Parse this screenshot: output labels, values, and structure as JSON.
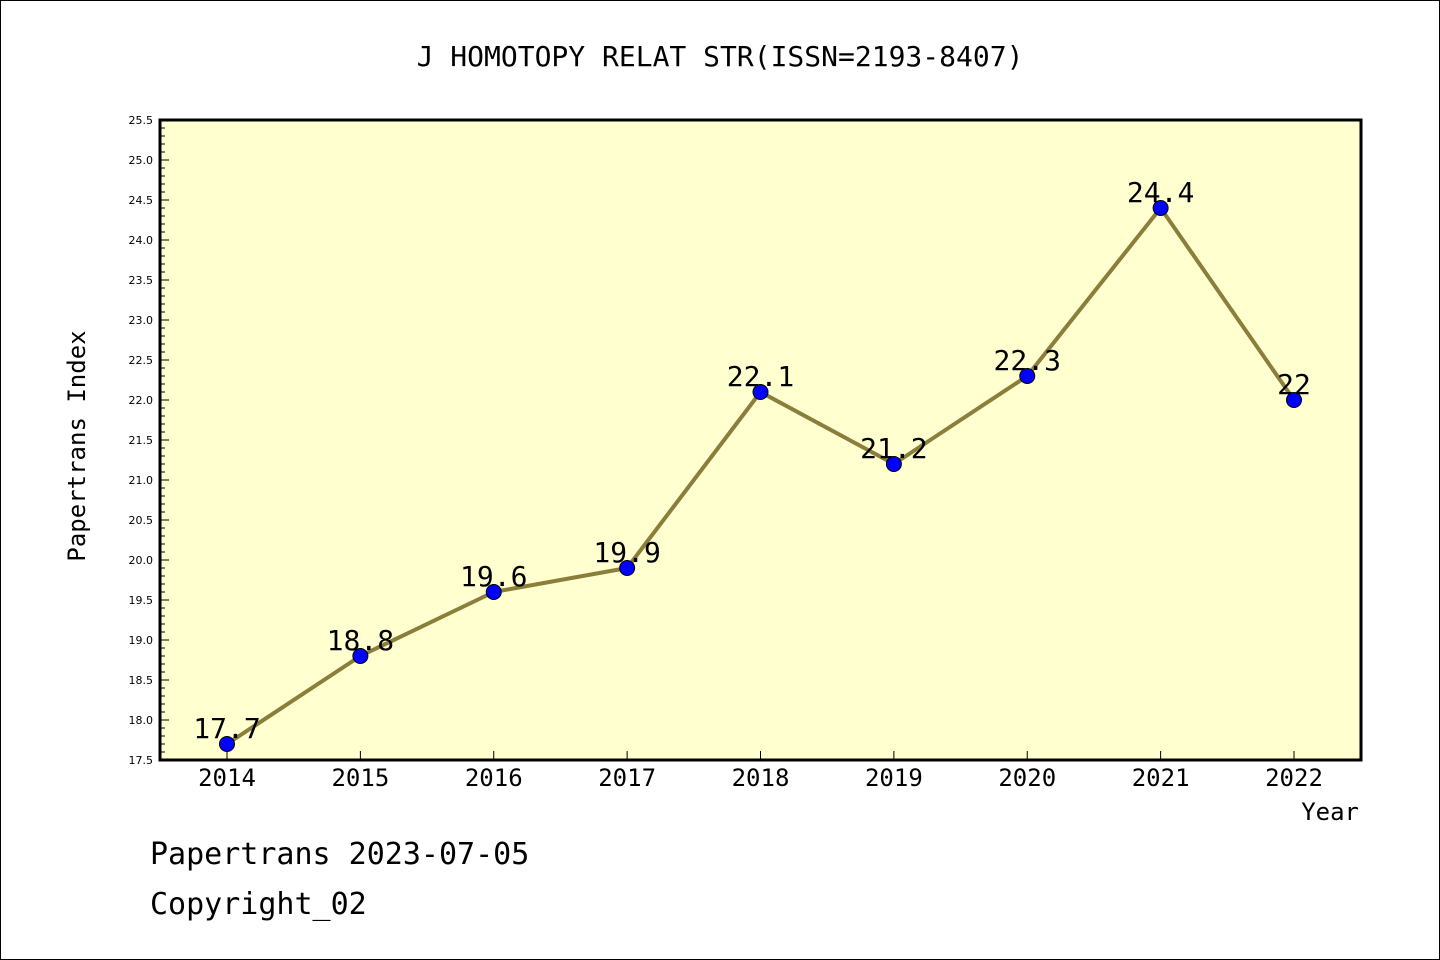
{
  "chart_data": {
    "type": "line",
    "title": "J HOMOTOPY RELAT STR(ISSN=2193-8407)",
    "xlabel": "Year",
    "ylabel": "Papertrans Index",
    "categories": [
      "2014",
      "2015",
      "2016",
      "2017",
      "2018",
      "2019",
      "2020",
      "2021",
      "2022"
    ],
    "series": [
      {
        "values": [
          17.7,
          18.8,
          19.6,
          19.9,
          22.1,
          21.2,
          22.3,
          24.4,
          22.0
        ],
        "data_labels": [
          "17.7",
          "18.8",
          "19.6",
          "19.9",
          "22.1",
          "21.2",
          "22.3",
          "24.4",
          "22"
        ],
        "line_color": "#8b7d3a",
        "marker_color": "#0000ff"
      }
    ],
    "ylim": [
      17.5,
      25.5
    ],
    "y_ticks": [
      "17.5",
      "18.0",
      "18.5",
      "19.0",
      "19.5",
      "20.0",
      "20.5",
      "21.0",
      "21.5",
      "22.0",
      "22.5",
      "23.0",
      "23.5",
      "24.0",
      "24.5",
      "25.0",
      "25.5"
    ],
    "grid": false,
    "plot_background": "#ffffd0"
  },
  "footer": {
    "line1": "Papertrans 2023-07-05",
    "line2": "Copyright_02"
  }
}
